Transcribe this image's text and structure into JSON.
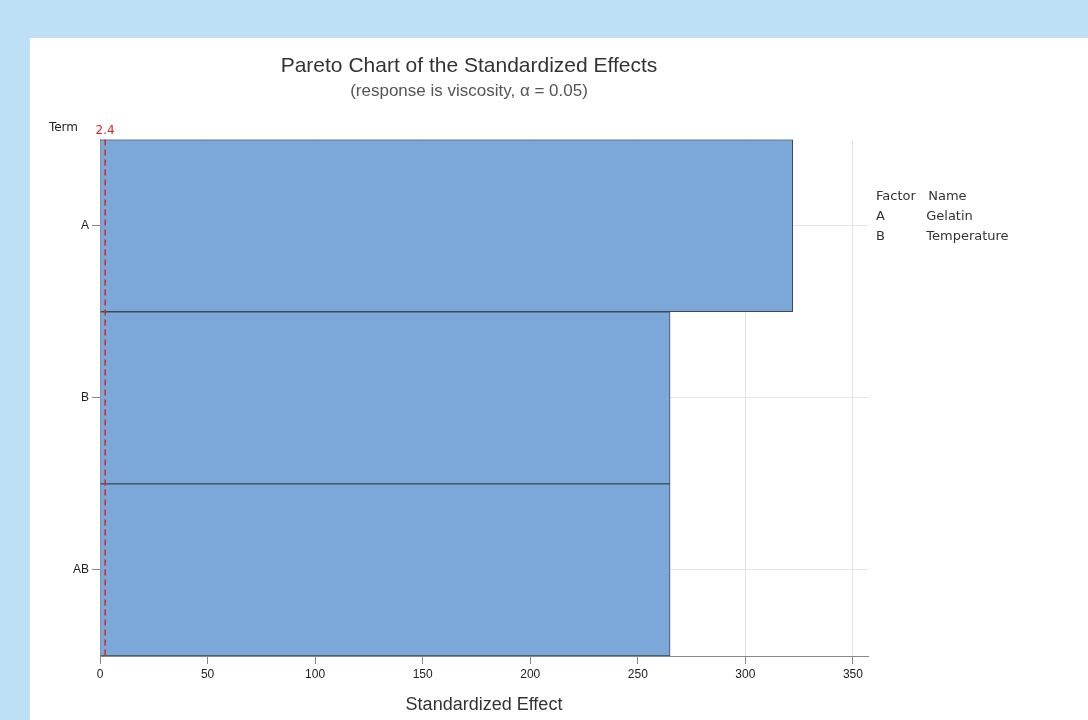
{
  "chart_data": {
    "type": "bar",
    "orientation": "horizontal",
    "title": "Pareto Chart of the Standardized Effects",
    "subtitle": "(response is viscosity, α = 0.05)",
    "xlabel": "Standardized Effect",
    "ylabel": "Term",
    "categories": [
      "A",
      "B",
      "AB"
    ],
    "values": [
      322,
      265,
      265
    ],
    "color": "#7ba7d9",
    "xlim": [
      0,
      357
    ],
    "xticks": [
      0,
      50,
      100,
      150,
      200,
      250,
      300,
      350
    ],
    "grid": true,
    "ref_lines": [
      {
        "axis": "x",
        "value": 2.4,
        "label": "2.4",
        "color": "#d62728",
        "line_style": "dashed"
      }
    ],
    "annotations": [
      "Factor   Name",
      "A          Gelatin",
      "B          Temperature"
    ]
  }
}
